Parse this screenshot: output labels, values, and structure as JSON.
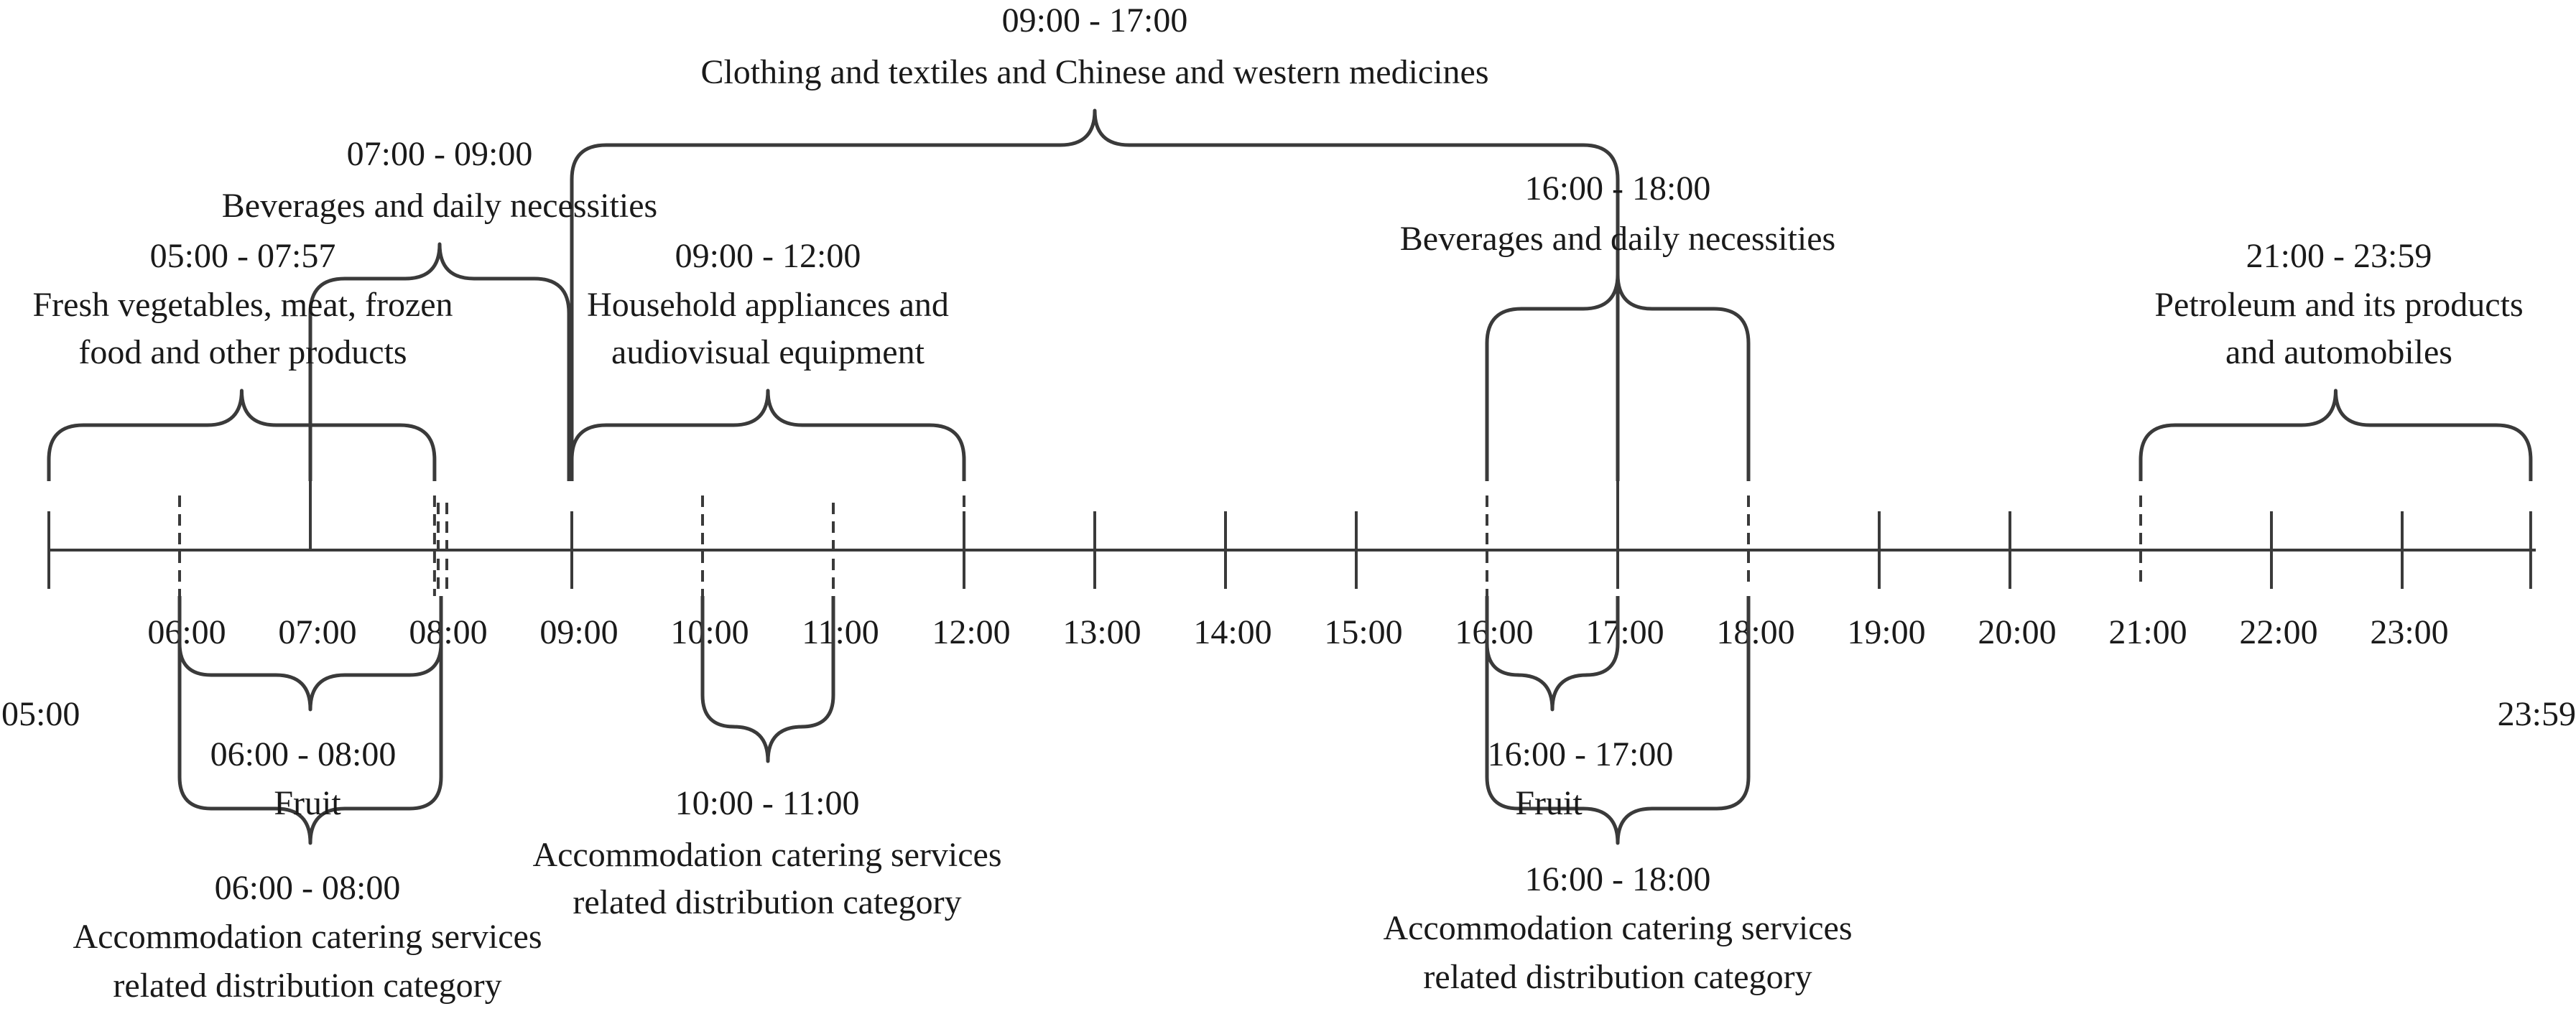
{
  "axis": {
    "tick_labels": [
      "05:00",
      "06:00",
      "07:00",
      "08:00",
      "09:00",
      "10:00",
      "11:00",
      "12:00",
      "13:00",
      "14:00",
      "15:00",
      "16:00",
      "17:00",
      "18:00",
      "19:00",
      "20:00",
      "21:00",
      "22:00",
      "23:00",
      "23:59"
    ]
  },
  "above": [
    {
      "id": "fresh",
      "time": "05:00 - 07:57",
      "lines": [
        "Fresh vegetables, meat, frozen",
        "food and other products"
      ],
      "start": 5.0,
      "end": 7.95
    },
    {
      "id": "bev-morning",
      "time": "07:00 - 09:00",
      "lines": [
        "Beverages and daily necessities"
      ],
      "start": 7.0,
      "end": 9.0
    },
    {
      "id": "household",
      "time": "09:00 - 12:00",
      "lines": [
        "Household appliances and",
        "audiovisual equipment"
      ],
      "start": 9.0,
      "end": 12.0
    },
    {
      "id": "clothing",
      "time": "09:00 - 17:00",
      "lines": [
        "Clothing and textiles and Chinese and western medicines"
      ],
      "start": 9.0,
      "end": 17.0
    },
    {
      "id": "bev-evening",
      "time": "16:00 - 18:00",
      "lines": [
        "Beverages and daily necessities"
      ],
      "start": 16.0,
      "end": 18.0
    },
    {
      "id": "petroleum",
      "time": "21:00 - 23:59",
      "lines": [
        "Petroleum and its products",
        "and automobiles"
      ],
      "start": 21.0,
      "end": 23.983
    }
  ],
  "below": [
    {
      "id": "fruit-morning",
      "time": "06:00 - 08:00",
      "lines": [
        "Fruit"
      ],
      "start": 6.0,
      "end": 8.0
    },
    {
      "id": "accom-morning",
      "time": "06:00 - 08:00",
      "lines": [
        "Accommodation catering services",
        "related distribution category"
      ],
      "start": 6.0,
      "end": 8.0
    },
    {
      "id": "accom-midday",
      "time": "10:00 - 11:00",
      "lines": [
        "Accommodation catering services",
        "related distribution category"
      ],
      "start": 10.0,
      "end": 11.0
    },
    {
      "id": "fruit-evening",
      "time": "16:00 - 17:00",
      "lines": [
        "Fruit"
      ],
      "start": 16.0,
      "end": 17.0
    },
    {
      "id": "accom-evening",
      "time": "16:00 - 18:00",
      "lines": [
        "Accommodation catering services",
        "related distribution category"
      ],
      "start": 16.0,
      "end": 18.0
    }
  ]
}
